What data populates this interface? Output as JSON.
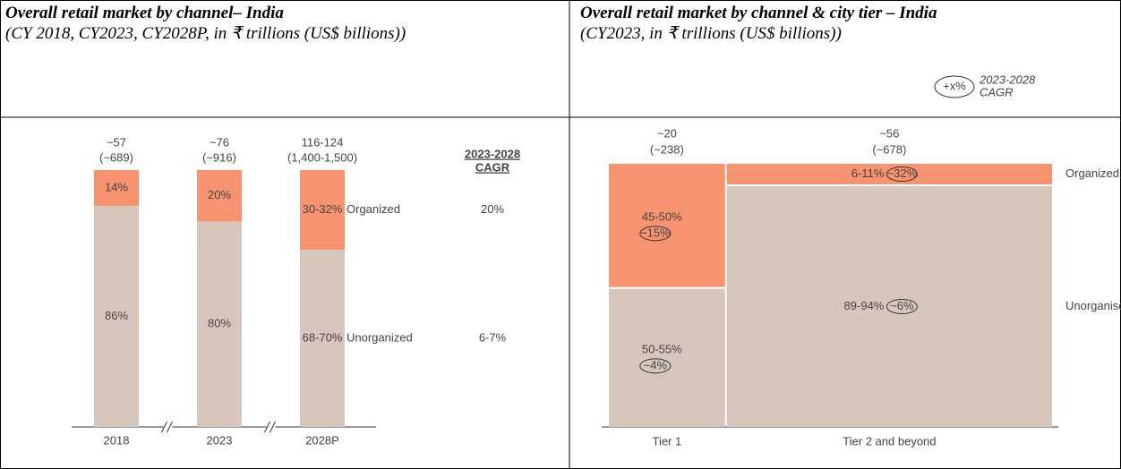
{
  "chart_data": [
    {
      "type": "stacked100",
      "title": "Overall retail market by channel– India",
      "subtitle": "(CY 2018, CY2023, CY2028P, in ₹ trillions (US$ billions))",
      "categories": [
        "2018",
        "2023",
        "2028P"
      ],
      "total_labels": [
        "~57",
        "~76",
        "116-124"
      ],
      "total_usd_labels": [
        "(~689)",
        "(~916)",
        "(1,400-1,500)"
      ],
      "cagr_title": [
        "2023-2028",
        "CAGR"
      ],
      "series": [
        {
          "name": "Organized",
          "color": "#f7936f",
          "values": [
            14,
            20,
            31
          ],
          "value_labels": [
            "14%",
            "20%",
            "30-32%"
          ],
          "cagr": "20%"
        },
        {
          "name": "Unorganized",
          "color": "#d6c6bc",
          "values": [
            86,
            80,
            69
          ],
          "value_labels": [
            "86%",
            "80%",
            "68-70%"
          ],
          "cagr": "6-7%"
        }
      ]
    },
    {
      "type": "marimekko",
      "title": "Overall retail market by channel & city tier – India",
      "subtitle": "(CY2023, in ₹ trillions (US$ billions))",
      "legend_symbol": "+x%",
      "legend_text": [
        "2023-2028",
        "CAGR"
      ],
      "categories": [
        "Tier 1",
        "Tier 2 and beyond"
      ],
      "widths": [
        20,
        56
      ],
      "width_labels": [
        "~20",
        "~56"
      ],
      "width_usd_labels": [
        "(~238)",
        "(~678)"
      ],
      "series": [
        {
          "name": "Organized",
          "color": "#f7936f",
          "values": [
            47.5,
            8.5
          ],
          "value_labels": [
            "45-50%",
            "6-11%"
          ],
          "cagr_labels": [
            "~15%",
            "~32%"
          ]
        },
        {
          "name": "Unorganised",
          "color": "#d6c6bc",
          "values": [
            52.5,
            91.5
          ],
          "value_labels": [
            "50-55%",
            "89-94%"
          ],
          "cagr_labels": [
            "~4%",
            "~6%"
          ]
        }
      ]
    }
  ]
}
